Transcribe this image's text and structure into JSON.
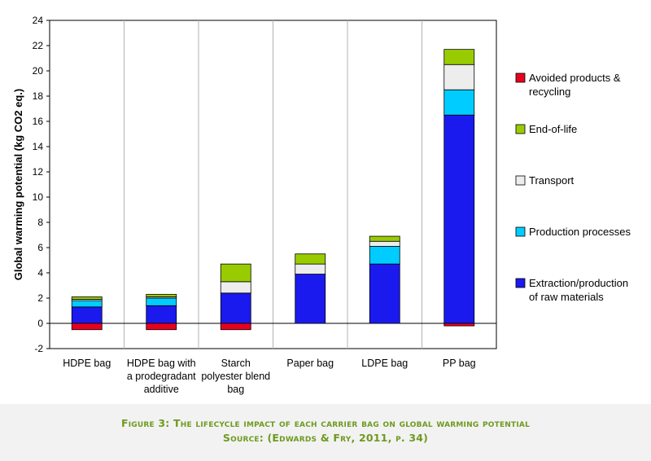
{
  "chart_data": {
    "type": "bar",
    "stacked": true,
    "title": "",
    "xlabel": "",
    "ylabel": "Global warming potential (kg CO2 eq.)",
    "ylim": [
      -2,
      24
    ],
    "yticks": [
      -2,
      0,
      2,
      4,
      6,
      8,
      10,
      12,
      14,
      16,
      18,
      20,
      22,
      24
    ],
    "grid": "vertical separators",
    "legend_position": "right",
    "categories": [
      [
        "HDPE bag"
      ],
      [
        "HDPE bag with",
        "a prodegradant",
        "additive"
      ],
      [
        "Starch",
        "polyester blend",
        "bag"
      ],
      [
        "Paper bag"
      ],
      [
        "LDPE bag"
      ],
      [
        "PP bag"
      ]
    ],
    "series": [
      {
        "name": [
          "Extraction/production",
          "of raw materials"
        ],
        "color": "#1a1aee",
        "values": [
          1.3,
          1.4,
          2.4,
          3.9,
          4.7,
          16.5
        ]
      },
      {
        "name": [
          "Production processes"
        ],
        "color": "#00ccff",
        "values": [
          0.5,
          0.6,
          0.0,
          0.0,
          1.4,
          2.0
        ]
      },
      {
        "name": [
          "Transport"
        ],
        "color": "#ededed",
        "values": [
          0.1,
          0.1,
          0.9,
          0.8,
          0.4,
          2.0
        ]
      },
      {
        "name": [
          "End-of-life"
        ],
        "color": "#99cc00",
        "values": [
          0.2,
          0.2,
          1.4,
          0.8,
          0.4,
          1.2
        ]
      },
      {
        "name": [
          "Avoided products &",
          "recycling"
        ],
        "color": "#e8001f",
        "values": [
          -0.5,
          -0.5,
          -0.5,
          0.0,
          0.0,
          -0.2
        ]
      }
    ],
    "legend_order": [
      4,
      3,
      2,
      1,
      0
    ]
  },
  "caption": {
    "line1": "Figure 3: The lifecycle impact of each carrier bag on global warming potential",
    "line2": "Source: (Edwards & Fry, 2011, p. 34)"
  }
}
